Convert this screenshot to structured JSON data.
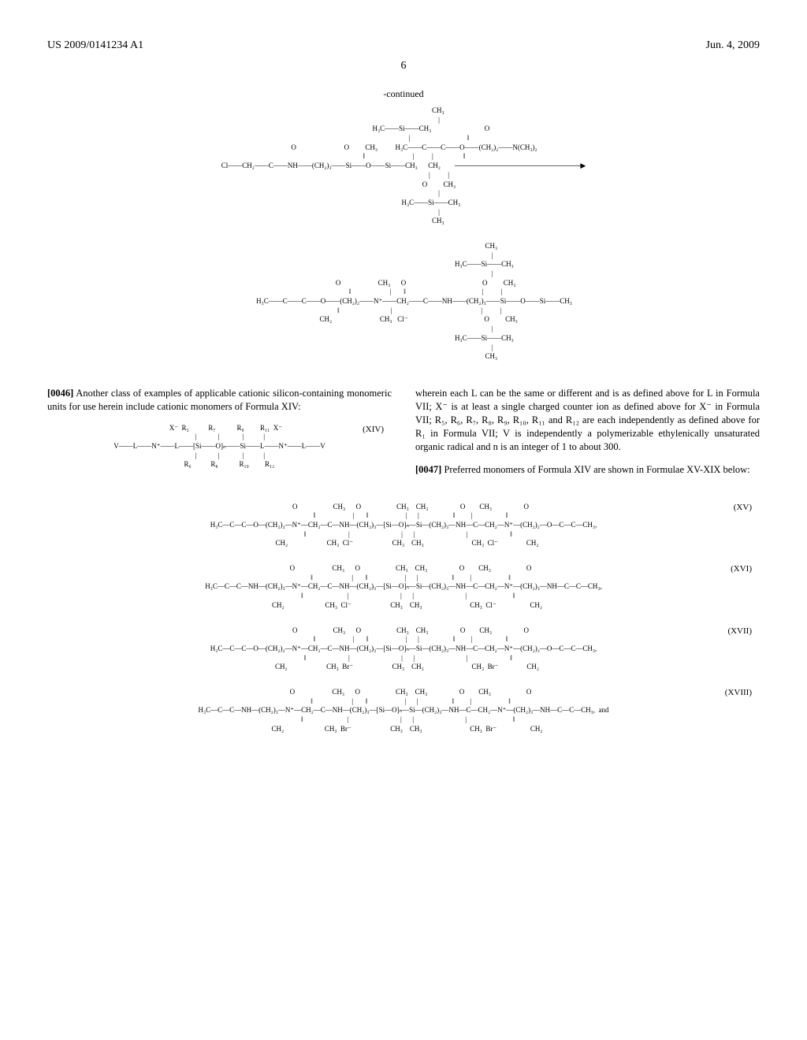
{
  "header": {
    "patent_number": "US 2009/0141234 A1",
    "date": "Jun. 4, 2009"
  },
  "page_number": "6",
  "continued_label": "-continued",
  "reaction_scheme": {
    "reagent1": "Cl—CH₂—C(=O)—NH—(CH₂)₃—Si(—O—Si(CH₃)₃)₂—O—Si(CH₃)₃  /  Si(CH₃)₃ branches",
    "reagent2": "H₃C—C(=CH₂)—C(=O)—O—(CH₂)₂—N(CH₃)₂",
    "arrow": "──────────────────▶",
    "product": "H₃C—C(=CH₂)—C(=O)—O—(CH₂)₂—N⁺(CH₃)—CH₂—C(=O)—NH—(CH₂)₃—Si(—O—Si(CH₃)₃)₂—O—Si(CH₃)₃   Cl⁻"
  },
  "paragraphs": {
    "p0046_num": "[0046]",
    "p0046_text": "   Another class of examples of applicable cationic silicon-containing monomeric units for use herein include cationic monomers of Formula XIV:",
    "p0046_right": "wherein each L can be the same or different and is as defined above for L in Formula VII; X⁻ is at least a single charged counter ion as defined above for X⁻ in Formula VII; R₅, R₆, R₇, R₈, R₉, R₁₀, R₁₁ and R₁₂ are each independently as defined above for R₁ in Formula VII; V is independently a polymerizable ethylenically unsaturated organic radical and n is an integer of 1 to about 300.",
    "p0047_num": "[0047]",
    "p0047_text": "   Preferred monomers of Formula XIV are shown in Formulae XV-XIX below:"
  },
  "formula_labels": {
    "xiv": "(XIV)",
    "xv": "(XV)",
    "xvi": "(XVI)",
    "xvii": "(XVII)",
    "xviii": "(XVIII)"
  },
  "formula_xiv": "V—L—N⁺(R₅)(R₆)—L—[Si(R₇)(R₈)—O]ₙ—Si(R₉)(R₁₀)—L—N⁺(R₁₁)(R₁₂)—L—V    X⁻  X⁻",
  "formula_xv": "H₃C—C(=CH₂)—C(=O)—O—(CH₂)₂—N⁺(CH₃)₂—CH₂—C(=O)—NH—(CH₂)₃—[Si(CH₃)₂—O]ₙ—Si(CH₃)₂—(CH₂)₃—NH—C(=O)—CH₂—N⁺(CH₃)₂—(CH₂)₂—O—C(=O)—C(=CH₂)—CH₃,   Cl⁻ Cl⁻",
  "formula_xvi": "H₃C—C(=CH₂)—C(=O)—NH—(CH₂)₃—N⁺(CH₃)₂—CH₂—C(=O)—NH—(CH₂)₃—[Si(CH₃)₂—O]ₙ—Si(CH₃)₂—(CH₂)₃—NH—C(=O)—CH₂—N⁺(CH₃)₂—(CH₂)₃—NH—C(=O)—C(=CH₂)—CH₃,   Cl⁻ Cl⁻",
  "formula_xvii": "H₃C—C(=CH₂)—C(=O)—O—(CH₂)₂—N⁺(CH₃)₂—CH₂—C(=O)—NH—(CH₂)₃—[Si(CH₃)₂—O]ₙ—Si(CH₃)₂—(CH₂)₃—NH—C(=O)—CH₂—N⁺(CH₃)₂—(CH₂)₂—O—C(=O)—C(=CH₂)—CH₃,   Br⁻ Br⁻",
  "formula_xviii": "H₃C—C(=CH₂)—C(=O)—NH—(CH₂)₃—N⁺(CH₃)₂—CH₂—C(=O)—NH—(CH₂)₃—[Si(CH₃)₂—O]ₙ—Si(CH₃)₂—(CH₂)₃—NH—C(=O)—CH₂—N⁺(CH₃)₂—(CH₂)₃—NH—C(=O)—C(=CH₂)—CH₃,  and   Br⁻ Br⁻",
  "chem_ascii": {
    "scheme_top": "                                       CH₃\n                                        |\n                               H₃C——Si——CH₃                              O\n                                        |                                ‖\n            O                           O         CH₃          H₃C——C——C——O——(CH₂)₂——N(CH₃)₂\n            ‖                           |          |                 ‖\nCl——CH₂——C——NH——(CH₂)₃——Si——O——Si——CH₃      CH₂        ─────────────────────────▶\n                                        |          |\n                                        O         CH₃\n                                        |\n                               H₃C——Si——CH₃\n                                        |\n                                       CH₃",
    "scheme_bottom": "                                                                                                   CH₃\n                                                                                                    |\n                                                                                           H₃C——Si——CH₃\n                                                                                                    |\n                         O                     CH₃      O                                           O         CH₃\n                         ‖                      |       ‖                                           |          |\n            H₃C——C——C——O——(CH₂)₂——N⁺——CH₂——C——NH——(CH₂)₃——Si——O——Si——CH₃\n                  ‖                             |                                                  |          |\n                 CH₂                           CH₃   Cl⁻                                           O         CH₃\n                                                                                                    |\n                                                                                           H₃C——Si——CH₃\n                                                                                                    |\n                                                                                                   CH₃",
    "xiv": "       X⁻  R₅           R₇            R₉         R₁₁  X⁻\n            |            |             |           |\nV——L——N⁺——L——[Si——O]ₙ——Si——L——N⁺——L——V\n            |            |             |           |\n           R₆           R₈            R₁₀         R₁₂",
    "xv": "        O                    CH₃      O                    CH₃    CH₃                  O        CH₃                  O\n        ‖                     |       ‖                     |      |                   ‖         |                   ‖\nH₃C—C—C—O—(CH₂)₂—N⁺—CH₂—C—NH—(CH₂)₃—[Si—O]ₙ—Si—(CH₂)₃—NH—C—CH₂—N⁺—(CH₂)₂—O—C—C—CH₃,\n     ‖                        |                             |      |                             |                        ‖\n    CH₂                      CH₃  Cl⁻                      CH₃    CH₃                           CH₃  Cl⁻                CH₂",
    "xvi": "        O                     CH₃      O                    CH₃    CH₃                  O        CH₃                    O\n        ‖                      |       ‖                     |      |                   ‖         |                     ‖\nH₃C—C—C—NH—(CH₂)₃—N⁺—CH₂—C—NH—(CH₂)₃—[Si—O]ₙ—Si—(CH₂)₃—NH—C—CH₂—N⁺—(CH₂)₃—NH—C—C—CH₃,\n     ‖                         |                             |      |                             |                          ‖\n    CH₂                       CH₃  Cl⁻                      CH₃    CH₃                           CH₃  Cl⁻                   CH₂",
    "xvii": "        O                    CH₃      O                    CH₃    CH₃                  O        CH₃                  O\n        ‖                     |       ‖                     |      |                   ‖         |                   ‖\nH₃C—C—C—O—(CH₂)₂—N⁺—CH₂—C—NH—(CH₂)₃—[Si—O]ₙ—Si—(CH₂)₃—NH—C—CH₂—N⁺—(CH₂)₂—O—C—C—CH₃,\n     ‖                        |                             |      |                             |                        ‖\n    CH₂                      CH₃  Br⁻                      CH₃    CH₃                           CH₃  Br⁻                CH₂",
    "xviii": "        O                     CH₃      O                    CH₃    CH₃                  O        CH₃                    O\n        ‖                      |       ‖                     |      |                   ‖         |                     ‖\nH₃C—C—C—NH—(CH₂)₃—N⁺—CH₂—C—NH—(CH₂)₃—[Si—O]ₙ—Si—(CH₂)₃—NH—C—CH₂—N⁺—(CH₂)₃—NH—C—C—CH₃,  and\n     ‖                         |                             |      |                             |                          ‖\n    CH₂                       CH₃  Br⁻                      CH₃    CH₃                           CH₃  Br⁻                   CH₂"
  }
}
